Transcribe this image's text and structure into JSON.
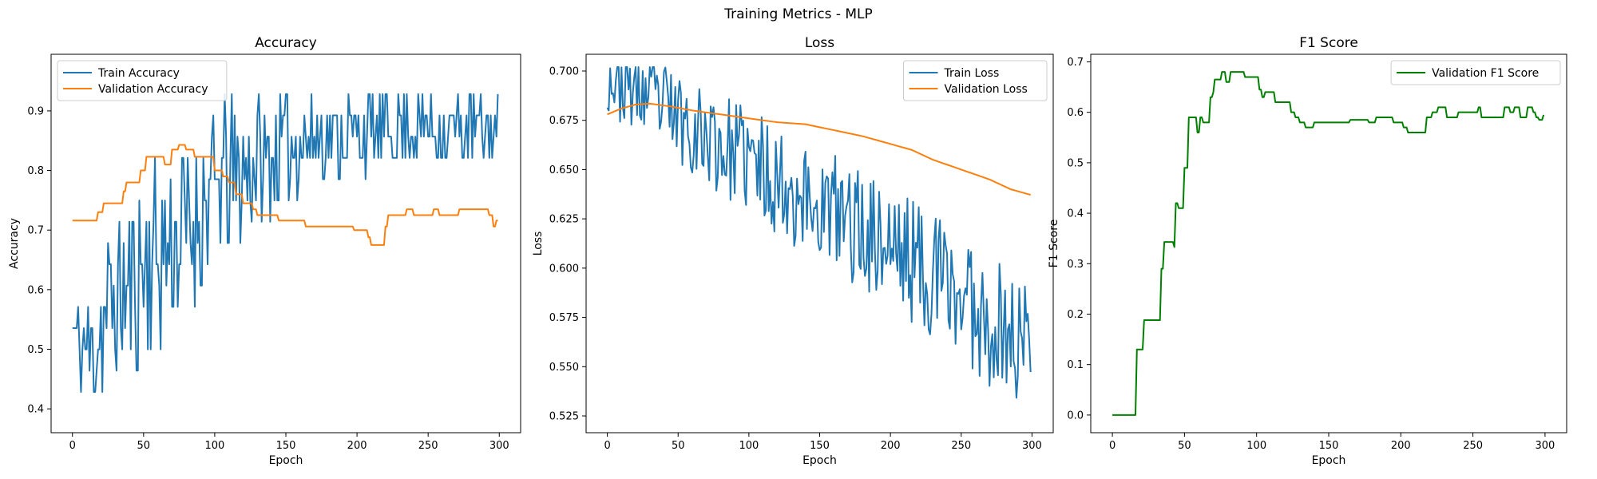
{
  "figure": {
    "suptitle": "Training Metrics - MLP"
  },
  "chart_data": [
    {
      "type": "line",
      "title": "Accuracy",
      "xlabel": "Epoch",
      "ylabel": "Accuracy",
      "xlim": [
        -15,
        315
      ],
      "ylim": [
        0.36,
        0.995
      ],
      "xticks": [
        0,
        50,
        100,
        150,
        200,
        250,
        300
      ],
      "yticks": [
        0.4,
        0.5,
        0.6,
        0.7,
        0.8,
        0.9
      ],
      "yformat": 1,
      "legend": "top-left",
      "grid": false,
      "series": [
        {
          "name": "Train Accuracy",
          "color": "#1f77b4",
          "style": "noisy",
          "anchors": [
            [
              0,
              0.55
            ],
            [
              5,
              0.5
            ],
            [
              15,
              0.5
            ],
            [
              25,
              0.57
            ],
            [
              40,
              0.6
            ],
            [
              50,
              0.64
            ],
            [
              60,
              0.66
            ],
            [
              70,
              0.68
            ],
            [
              80,
              0.7
            ],
            [
              90,
              0.73
            ],
            [
              100,
              0.77
            ],
            [
              110,
              0.79
            ],
            [
              120,
              0.8
            ],
            [
              130,
              0.81
            ],
            [
              140,
              0.83
            ],
            [
              150,
              0.84
            ],
            [
              160,
              0.85
            ],
            [
              170,
              0.86
            ],
            [
              180,
              0.86
            ],
            [
              190,
              0.86
            ],
            [
              200,
              0.86
            ],
            [
              220,
              0.87
            ],
            [
              240,
              0.87
            ],
            [
              260,
              0.87
            ],
            [
              280,
              0.87
            ],
            [
              300,
              0.87
            ]
          ],
          "noise": [
            [
              0,
              0.06
            ],
            [
              50,
              0.11
            ],
            [
              100,
              0.09
            ],
            [
              150,
              0.06
            ],
            [
              200,
              0.04
            ],
            [
              300,
              0.04
            ]
          ],
          "clip": [
            0.393,
            0.964
          ],
          "quant": 0.0357,
          "seed": 11
        },
        {
          "name": "Validation Accuracy",
          "color": "#ff7f0e",
          "style": "step",
          "anchors": [
            [
              0,
              0.716
            ],
            [
              16,
              0.716
            ],
            [
              18,
              0.73
            ],
            [
              22,
              0.745
            ],
            [
              32,
              0.745
            ],
            [
              36,
              0.765
            ],
            [
              38,
              0.78
            ],
            [
              45,
              0.78
            ],
            [
              48,
              0.8
            ],
            [
              52,
              0.823
            ],
            [
              60,
              0.823
            ],
            [
              65,
              0.81
            ],
            [
              70,
              0.835
            ],
            [
              75,
              0.843
            ],
            [
              80,
              0.835
            ],
            [
              86,
              0.823
            ],
            [
              95,
              0.823
            ],
            [
              100,
              0.8
            ],
            [
              106,
              0.79
            ],
            [
              110,
              0.78
            ],
            [
              115,
              0.76
            ],
            [
              120,
              0.745
            ],
            [
              127,
              0.735
            ],
            [
              130,
              0.725
            ],
            [
              142,
              0.725
            ],
            [
              145,
              0.716
            ],
            [
              160,
              0.716
            ],
            [
              164,
              0.706
            ],
            [
              195,
              0.706
            ],
            [
              198,
              0.7
            ],
            [
              206,
              0.7
            ],
            [
              208,
              0.688
            ],
            [
              210,
              0.675
            ],
            [
              218,
              0.675
            ],
            [
              220,
              0.706
            ],
            [
              222,
              0.725
            ],
            [
              228,
              0.725
            ],
            [
              235,
              0.735
            ],
            [
              240,
              0.725
            ],
            [
              250,
              0.725
            ],
            [
              254,
              0.735
            ],
            [
              258,
              0.725
            ],
            [
              270,
              0.725
            ],
            [
              272,
              0.735
            ],
            [
              290,
              0.735
            ],
            [
              293,
              0.725
            ],
            [
              296,
              0.706
            ],
            [
              298,
              0.716
            ]
          ],
          "clip": [
            0.67,
            0.85
          ],
          "quant": 0.0098,
          "seed": 5
        }
      ]
    },
    {
      "type": "line",
      "title": "Loss",
      "xlabel": "Epoch",
      "ylabel": "Loss",
      "xlim": [
        -15,
        315
      ],
      "ylim": [
        0.5165,
        0.7085
      ],
      "xticks": [
        0,
        50,
        100,
        150,
        200,
        250,
        300
      ],
      "yticks": [
        0.525,
        0.55,
        0.575,
        0.6,
        0.625,
        0.65,
        0.675,
        0.7
      ],
      "yformat": 3,
      "legend": "top-right",
      "grid": false,
      "series": [
        {
          "name": "Train Loss",
          "color": "#1f77b4",
          "style": "noisy",
          "anchors": [
            [
              0,
              0.697
            ],
            [
              20,
              0.69
            ],
            [
              40,
              0.682
            ],
            [
              60,
              0.672
            ],
            [
              80,
              0.662
            ],
            [
              100,
              0.655
            ],
            [
              120,
              0.645
            ],
            [
              140,
              0.635
            ],
            [
              160,
              0.628
            ],
            [
              180,
              0.62
            ],
            [
              200,
              0.612
            ],
            [
              220,
              0.602
            ],
            [
              240,
              0.592
            ],
            [
              260,
              0.58
            ],
            [
              280,
              0.568
            ],
            [
              300,
              0.56
            ]
          ],
          "noise": [
            [
              0,
              0.012
            ],
            [
              100,
              0.017
            ],
            [
              200,
              0.02
            ],
            [
              300,
              0.022
            ]
          ],
          "clip": [
            0.524,
            0.702
          ],
          "quant": 0,
          "seed": 23
        },
        {
          "name": "Validation Loss",
          "color": "#ff7f0e",
          "style": "smooth",
          "anchors": [
            [
              0,
              0.678
            ],
            [
              10,
              0.681
            ],
            [
              20,
              0.683
            ],
            [
              30,
              0.6835
            ],
            [
              45,
              0.682
            ],
            [
              60,
              0.68
            ],
            [
              80,
              0.678
            ],
            [
              100,
              0.676
            ],
            [
              120,
              0.674
            ],
            [
              140,
              0.673
            ],
            [
              160,
              0.67
            ],
            [
              180,
              0.667
            ],
            [
              200,
              0.663
            ],
            [
              215,
              0.66
            ],
            [
              230,
              0.655
            ],
            [
              250,
              0.65
            ],
            [
              270,
              0.645
            ],
            [
              285,
              0.64
            ],
            [
              300,
              0.637
            ]
          ],
          "clip": [
            0.6,
            0.7
          ],
          "quant": 0,
          "seed": 3
        }
      ]
    },
    {
      "type": "line",
      "title": "F1 Score",
      "xlabel": "Epoch",
      "ylabel": "F1 Score",
      "xlim": [
        -15,
        315
      ],
      "ylim": [
        -0.035,
        0.715
      ],
      "xticks": [
        0,
        50,
        100,
        150,
        200,
        250,
        300
      ],
      "yticks": [
        0.0,
        0.1,
        0.2,
        0.3,
        0.4,
        0.5,
        0.6,
        0.7
      ],
      "yformat": 1,
      "legend": "top-right",
      "grid": false,
      "series": [
        {
          "name": "Validation F1 Score",
          "color": "#008000",
          "style": "step",
          "anchors": [
            [
              0,
              0.0
            ],
            [
              16,
              0.0
            ],
            [
              17,
              0.13
            ],
            [
              21,
              0.13
            ],
            [
              22,
              0.188
            ],
            [
              33,
              0.188
            ],
            [
              34,
              0.29
            ],
            [
              36,
              0.343
            ],
            [
              42,
              0.343
            ],
            [
              43,
              0.333
            ],
            [
              44,
              0.42
            ],
            [
              46,
              0.41
            ],
            [
              49,
              0.41
            ],
            [
              50,
              0.49
            ],
            [
              53,
              0.59
            ],
            [
              58,
              0.59
            ],
            [
              59,
              0.56
            ],
            [
              61,
              0.59
            ],
            [
              63,
              0.58
            ],
            [
              67,
              0.58
            ],
            [
              68,
              0.63
            ],
            [
              70,
              0.64
            ],
            [
              71,
              0.665
            ],
            [
              75,
              0.665
            ],
            [
              76,
              0.68
            ],
            [
              79,
              0.66
            ],
            [
              82,
              0.68
            ],
            [
              90,
              0.68
            ],
            [
              92,
              0.67
            ],
            [
              100,
              0.67
            ],
            [
              102,
              0.645
            ],
            [
              104,
              0.63
            ],
            [
              106,
              0.64
            ],
            [
              110,
              0.64
            ],
            [
              113,
              0.62
            ],
            [
              120,
              0.62
            ],
            [
              124,
              0.6
            ],
            [
              127,
              0.59
            ],
            [
              130,
              0.58
            ],
            [
              134,
              0.57
            ],
            [
              140,
              0.58
            ],
            [
              160,
              0.58
            ],
            [
              165,
              0.585
            ],
            [
              175,
              0.585
            ],
            [
              178,
              0.58
            ],
            [
              183,
              0.59
            ],
            [
              190,
              0.59
            ],
            [
              195,
              0.58
            ],
            [
              200,
              0.58
            ],
            [
              202,
              0.57
            ],
            [
              205,
              0.56
            ],
            [
              214,
              0.56
            ],
            [
              218,
              0.59
            ],
            [
              222,
              0.6
            ],
            [
              226,
              0.61
            ],
            [
              230,
              0.61
            ],
            [
              232,
              0.59
            ],
            [
              238,
              0.59
            ],
            [
              240,
              0.6
            ],
            [
              252,
              0.6
            ],
            [
              254,
              0.61
            ],
            [
              256,
              0.59
            ],
            [
              270,
              0.59
            ],
            [
              272,
              0.61
            ],
            [
              276,
              0.6
            ],
            [
              279,
              0.61
            ],
            [
              283,
              0.59
            ],
            [
              288,
              0.61
            ],
            [
              292,
              0.6
            ],
            [
              294,
              0.59
            ],
            [
              296,
              0.585
            ],
            [
              299,
              0.595
            ]
          ],
          "clip": [
            0.0,
            0.68
          ],
          "quant": 0,
          "seed": 1
        }
      ]
    }
  ]
}
